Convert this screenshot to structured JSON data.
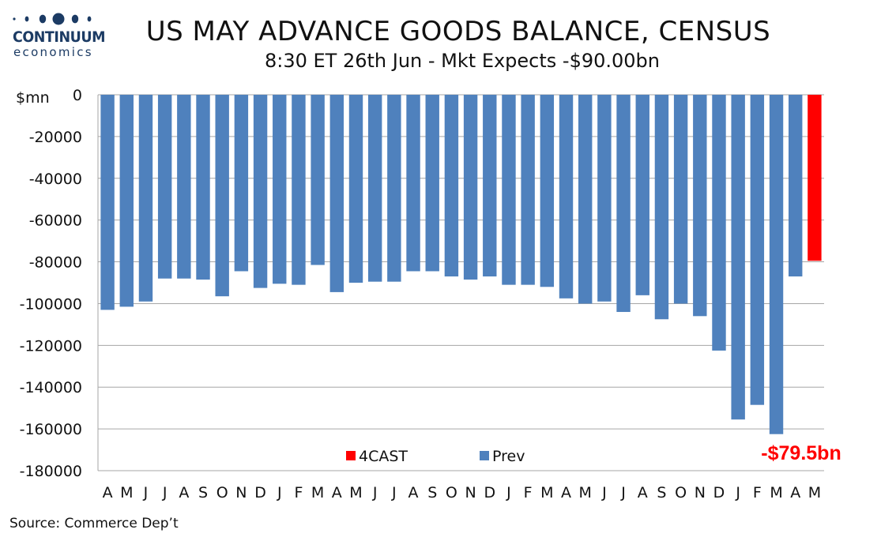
{
  "logo": {
    "name": "CONTINUUM",
    "sub": "economics",
    "color": "#1c3b64"
  },
  "header": {
    "title": "US MAY ADVANCE GOODS BALANCE, CENSUS",
    "subtitle": "8:30 ET 26th Jun - Mkt Expects -$90.00bn"
  },
  "footer": {
    "source": "Source: Commerce Dep’t"
  },
  "chart_data": {
    "type": "bar",
    "title": "US MAY ADVANCE GOODS BALANCE, CENSUS",
    "ylabel": "$mn",
    "ylim": [
      -180000,
      0
    ],
    "yticks": [
      0,
      -20000,
      -40000,
      -60000,
      -80000,
      -100000,
      -120000,
      -140000,
      -160000,
      -180000
    ],
    "grid": true,
    "legend_position": "bottom-center",
    "categories": [
      "A",
      "M",
      "J",
      "J",
      "A",
      "S",
      "O",
      "N",
      "D",
      "J",
      "F",
      "M",
      "A",
      "M",
      "J",
      "J",
      "A",
      "S",
      "O",
      "N",
      "D",
      "J",
      "F",
      "M",
      "A",
      "M",
      "J",
      "J",
      "A",
      "S",
      "O",
      "N",
      "D",
      "J",
      "F",
      "M",
      "A",
      "M"
    ],
    "series": [
      {
        "name": "Prev",
        "color": "#4f81bd",
        "values": [
          -103000,
          -101500,
          -99000,
          -88000,
          -88000,
          -88500,
          -96500,
          -84500,
          -92500,
          -90500,
          -91000,
          -81500,
          -94500,
          -90000,
          -89500,
          -89500,
          -84500,
          -84500,
          -87000,
          -88500,
          -87000,
          -91000,
          -91000,
          -92000,
          -97500,
          -100000,
          -99000,
          -104000,
          -96000,
          -107500,
          -100000,
          -106000,
          -122500,
          -155500,
          -148500,
          -162500,
          -87000,
          null
        ]
      },
      {
        "name": "4CAST",
        "color": "#ff0000",
        "values": [
          null,
          null,
          null,
          null,
          null,
          null,
          null,
          null,
          null,
          null,
          null,
          null,
          null,
          null,
          null,
          null,
          null,
          null,
          null,
          null,
          null,
          null,
          null,
          null,
          null,
          null,
          null,
          null,
          null,
          null,
          null,
          null,
          null,
          null,
          null,
          null,
          null,
          -79500
        ]
      }
    ],
    "annotations": [
      {
        "text": "-$79.5bn",
        "color": "#ff0000"
      }
    ]
  }
}
